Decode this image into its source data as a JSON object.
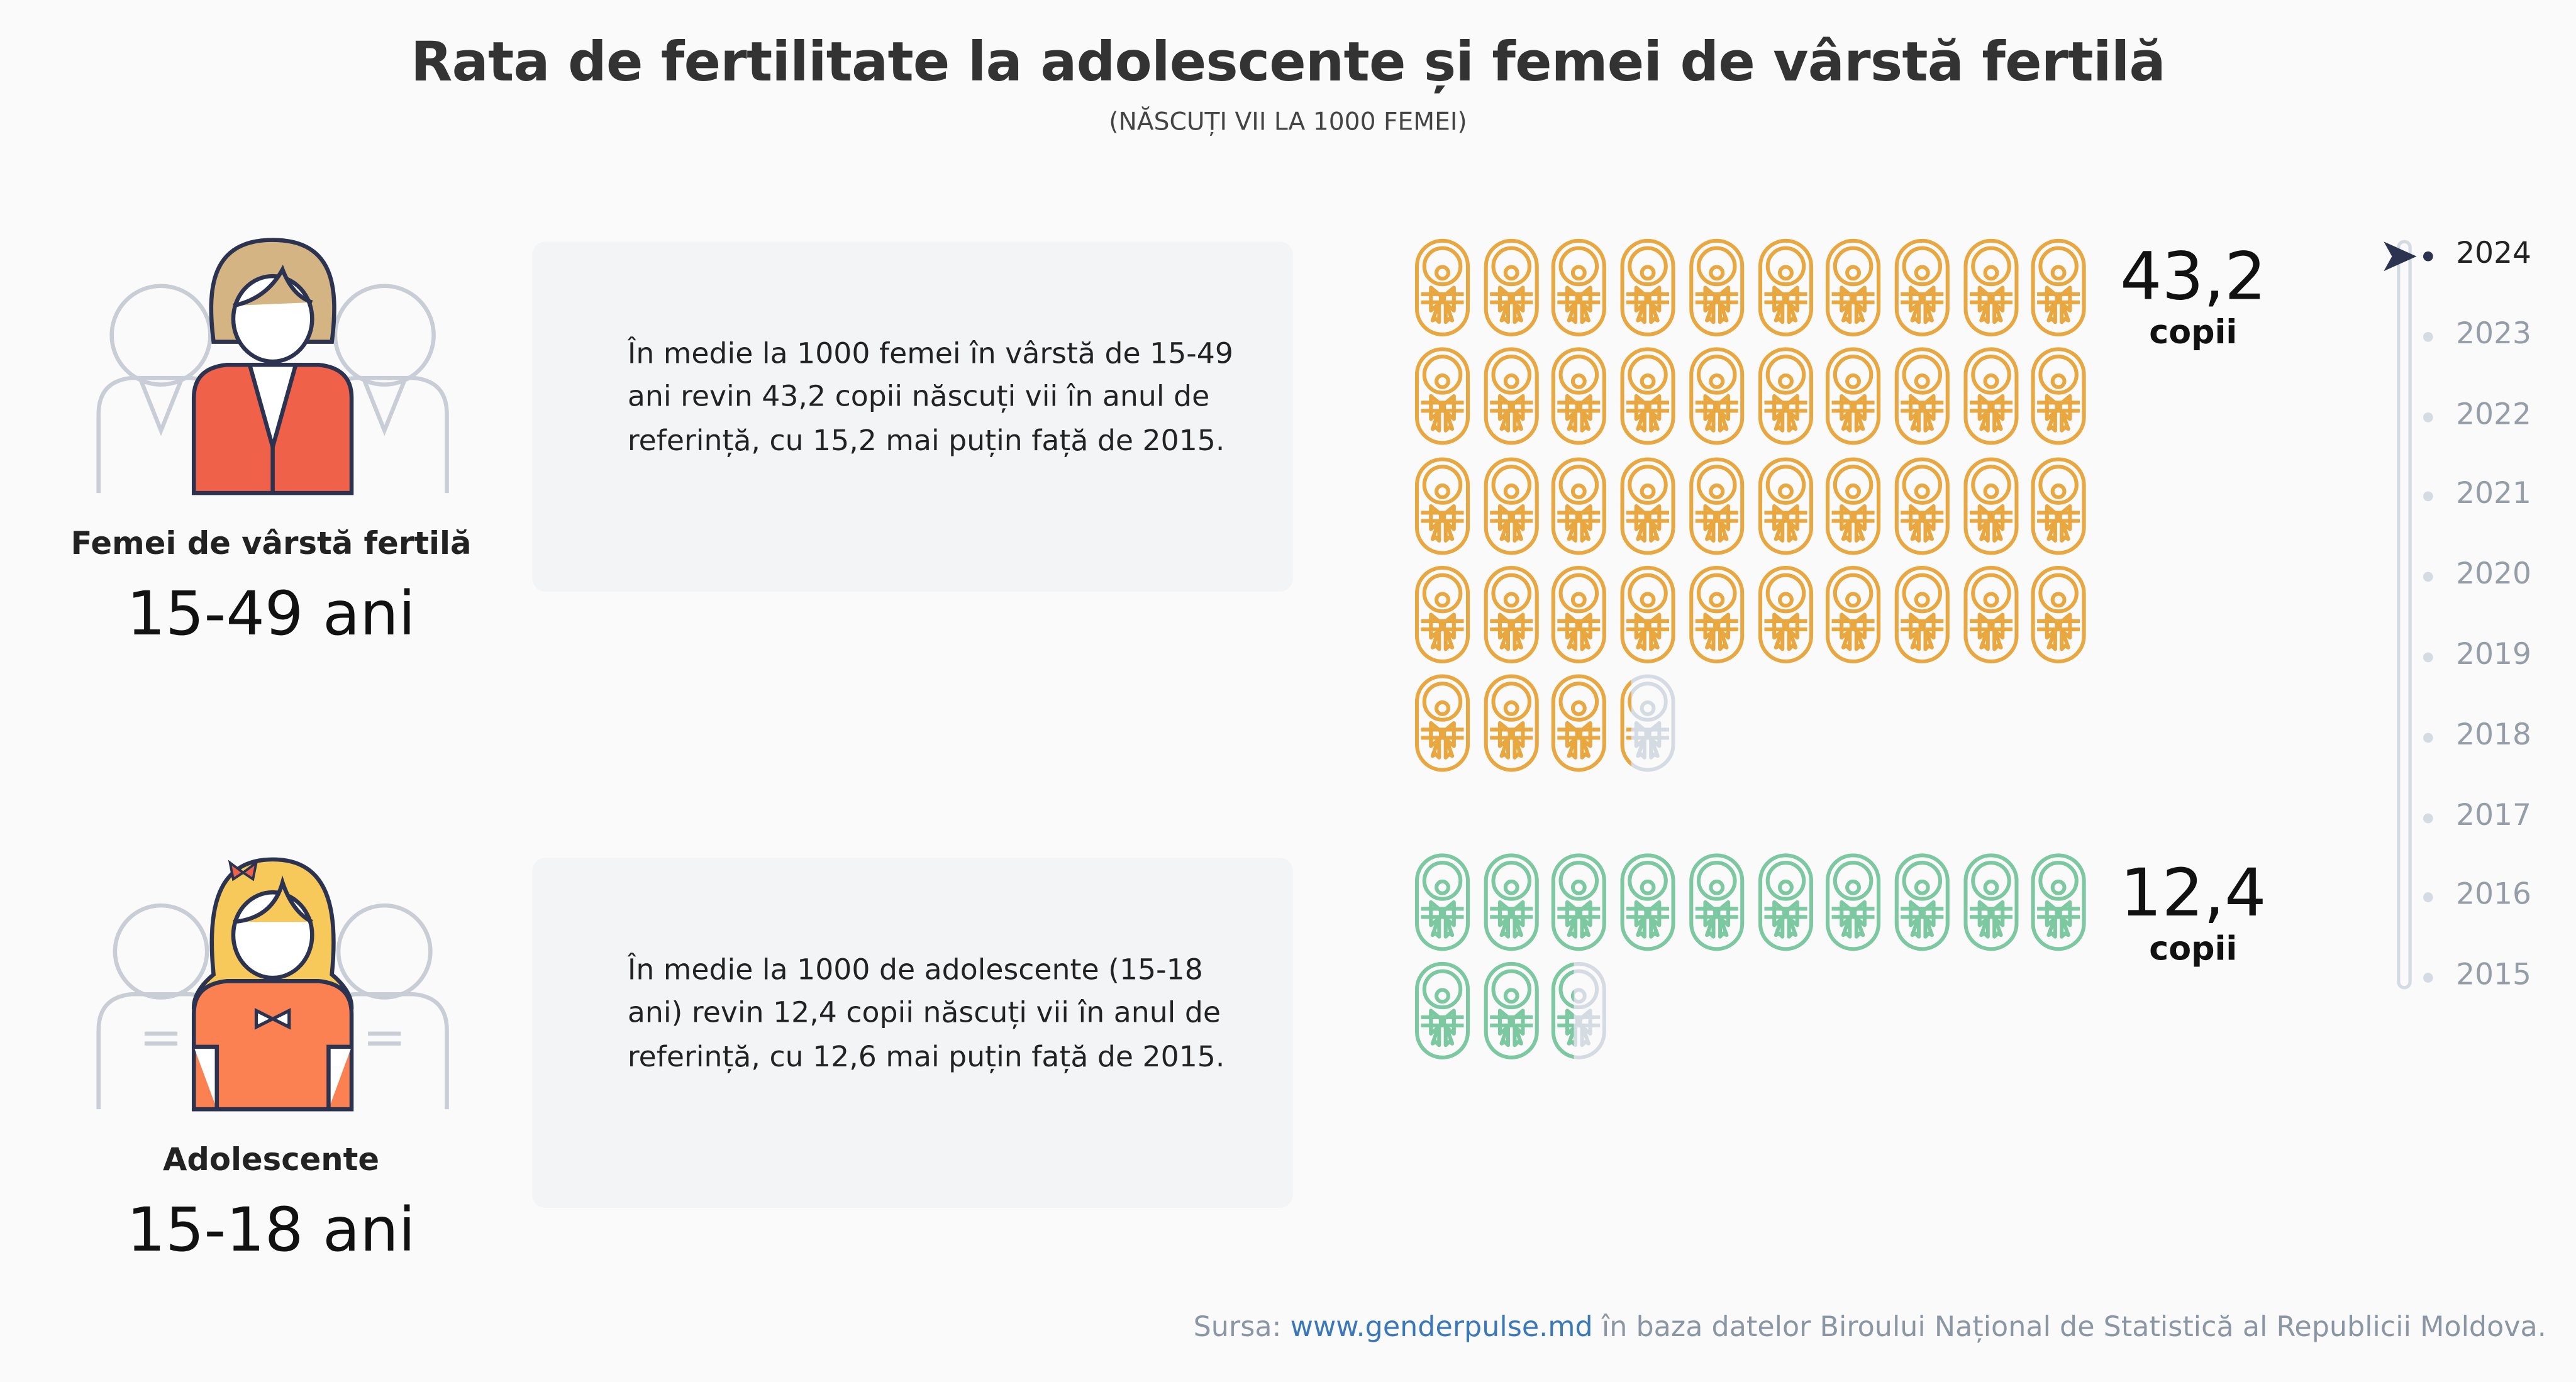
{
  "title": "Rata de fertilitate la adolescente și femei de vârstă fertilă",
  "subtitle": "(NĂSCUȚI VII LA 1000 FEMEI)",
  "colors": {
    "women": "#e8a73f",
    "teens": "#7cc8a0",
    "empty": "#d5dbe3",
    "accent_blazer": "#f0614a",
    "accent_shirt": "#fb8153"
  },
  "groups": [
    {
      "label": "Femei de vârstă fertilă",
      "age": "15-49 ani",
      "text": "În medie la 1000 femei în vârstă de 15-49 ani revin 43,2 copii născuți vii în anul de referință, cu 15,2 mai puțin față de 2015.",
      "value": 43.2,
      "value_label": "43,2",
      "unit": "copii",
      "icon": "baby-icon"
    },
    {
      "label": "Adolescente",
      "age": "15-18 ani",
      "text": "În medie la 1000 de adolescente (15-18 ani) revin 12,4 copii născuți vii în anul de referință, cu 12,6 mai puțin față de 2015.",
      "value": 12.4,
      "value_label": "12,4",
      "unit": "copii",
      "icon": "baby-icon"
    }
  ],
  "timeline": {
    "years": [
      "2024",
      "2023",
      "2022",
      "2021",
      "2020",
      "2019",
      "2018",
      "2017",
      "2016",
      "2015"
    ],
    "selected": "2024"
  },
  "footer": {
    "prefix": "Sursa: ",
    "link": "www.genderpulse.md",
    "suffix": " în baza datelor Biroului Național de Statistică al Republicii Moldova."
  }
}
